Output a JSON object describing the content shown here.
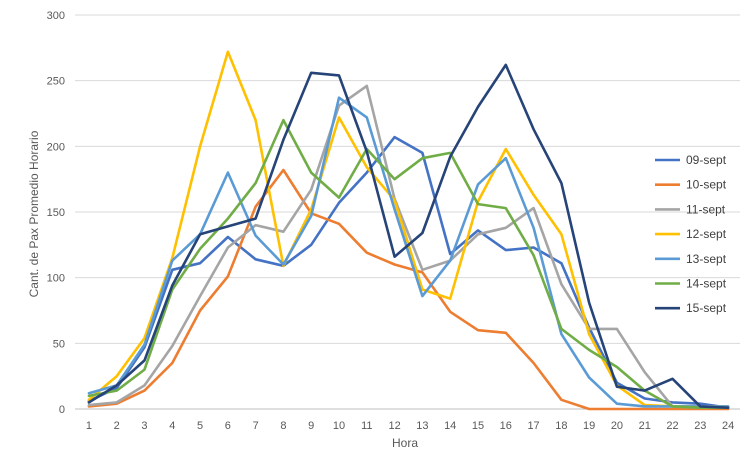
{
  "chart_data": {
    "type": "line",
    "title": "",
    "xlabel": "Hora",
    "ylabel": "Cant. de Pax Promedio Horario",
    "x": [
      1,
      2,
      3,
      4,
      5,
      6,
      7,
      8,
      9,
      10,
      11,
      12,
      13,
      14,
      15,
      16,
      17,
      18,
      19,
      20,
      21,
      22,
      23,
      24
    ],
    "ylim": [
      0,
      300
    ],
    "yticks": [
      0,
      50,
      100,
      150,
      200,
      250,
      300
    ],
    "grid": true,
    "legend_position": "right",
    "series": [
      {
        "name": "09-sept",
        "color": "#4472C4",
        "values": [
          6,
          16,
          47,
          106,
          111,
          131,
          114,
          109,
          125,
          157,
          180,
          207,
          195,
          118,
          136,
          121,
          123,
          111,
          62,
          20,
          8,
          5,
          4,
          1
        ]
      },
      {
        "name": "10-sept",
        "color": "#ED7D31",
        "values": [
          2,
          4,
          14,
          35,
          75,
          101,
          154,
          182,
          149,
          141,
          119,
          110,
          104,
          74,
          60,
          58,
          35,
          7,
          0,
          0,
          0,
          0,
          0,
          0
        ]
      },
      {
        "name": "11-sept",
        "color": "#A5A5A5",
        "values": [
          3,
          5,
          18,
          48,
          86,
          123,
          140,
          135,
          167,
          231,
          246,
          160,
          106,
          113,
          133,
          138,
          153,
          95,
          61,
          61,
          28,
          2,
          1,
          1
        ]
      },
      {
        "name": "12-sept",
        "color": "#FFC000",
        "values": [
          7,
          25,
          54,
          115,
          200,
          272,
          220,
          109,
          152,
          222,
          184,
          159,
          91,
          84,
          158,
          198,
          163,
          133,
          57,
          18,
          3,
          2,
          2,
          2
        ]
      },
      {
        "name": "13-sept",
        "color": "#5B9BD5",
        "values": [
          12,
          18,
          49,
          113,
          133,
          180,
          132,
          110,
          147,
          237,
          222,
          152,
          86,
          113,
          171,
          191,
          138,
          57,
          24,
          4,
          2,
          2,
          2,
          2
        ]
      },
      {
        "name": "14-sept",
        "color": "#70AD47",
        "values": [
          10,
          14,
          30,
          91,
          122,
          145,
          172,
          220,
          180,
          161,
          198,
          175,
          191,
          195,
          156,
          153,
          117,
          61,
          45,
          32,
          14,
          2,
          1,
          1
        ]
      },
      {
        "name": "15-sept",
        "color": "#264478",
        "values": [
          5,
          18,
          37,
          94,
          133,
          139,
          145,
          205,
          256,
          254,
          196,
          116,
          134,
          192,
          230,
          262,
          213,
          172,
          81,
          17,
          14,
          23,
          2,
          1
        ]
      }
    ]
  }
}
